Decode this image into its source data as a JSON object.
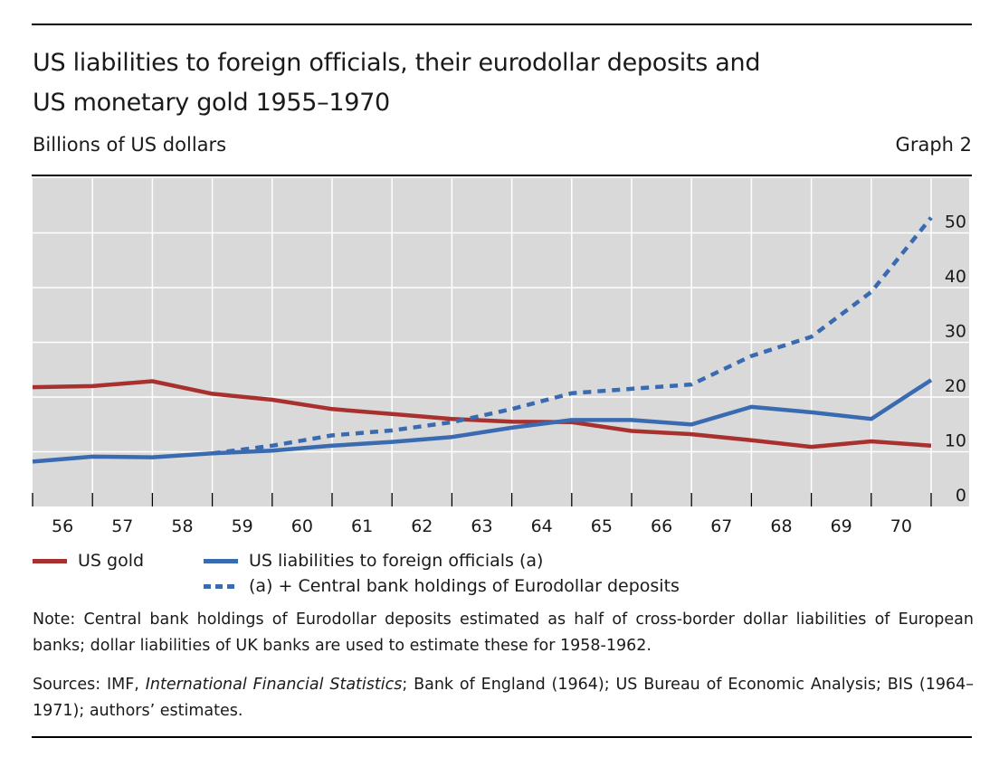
{
  "header": {
    "title_line1": "US liabilities to foreign officials, their eurodollar deposits and",
    "title_line2": "US monetary gold 1955–1970",
    "unit": "Billions of US dollars",
    "graph_number": "Graph 2"
  },
  "colors": {
    "gold": "#a8302f",
    "liabilities": "#3a6bb0",
    "plot_background": "#d9d9d9",
    "grid": "#ffffff"
  },
  "chart_data": {
    "type": "line",
    "title": "US liabilities to foreign officials, their eurodollar deposits and US monetary gold 1955–1970",
    "xlabel": "",
    "ylabel": "Billions of US dollars",
    "x": [
      1955,
      1956,
      1957,
      1958,
      1959,
      1960,
      1961,
      1962,
      1963,
      1964,
      1965,
      1966,
      1967,
      1968,
      1969,
      1970
    ],
    "x_tick_labels": [
      "56",
      "57",
      "58",
      "59",
      "60",
      "61",
      "62",
      "63",
      "64",
      "65",
      "66",
      "67",
      "68",
      "69",
      "70"
    ],
    "y_ticks": [
      0,
      10,
      20,
      30,
      40,
      50
    ],
    "ylim": [
      0,
      60
    ],
    "y_axis_side": "right",
    "grid": true,
    "legend_position": "bottom",
    "series": [
      {
        "name": "US gold",
        "style": "solid",
        "color": "#a8302f",
        "values": [
          21.8,
          22.0,
          22.9,
          20.6,
          19.5,
          17.8,
          16.9,
          16.0,
          15.5,
          15.4,
          13.8,
          13.2,
          12.1,
          10.9,
          11.9,
          11.1
        ]
      },
      {
        "name": "US liabilities to foreign officials (a)",
        "style": "solid",
        "color": "#3a6bb0",
        "values": [
          8.2,
          9.1,
          9.0,
          9.7,
          10.2,
          11.1,
          11.8,
          12.7,
          14.4,
          15.8,
          15.8,
          15.0,
          18.2,
          17.2,
          16.0,
          23.1
        ]
      },
      {
        "name": "(a) + Central bank holdings of Eurodollar deposits",
        "style": "dashed",
        "color": "#3a6bb0",
        "values": [
          null,
          null,
          null,
          9.7,
          11.1,
          13.0,
          13.9,
          15.4,
          17.8,
          20.7,
          21.5,
          22.3,
          27.5,
          31.0,
          39.2,
          52.8
        ]
      }
    ]
  },
  "legend": {
    "items": [
      {
        "label": "US gold"
      },
      {
        "label": "US liabilities to foreign officials (a)"
      },
      {
        "label": "(a) + Central bank holdings of Eurodollar deposits"
      }
    ]
  },
  "footer": {
    "note": "Note: Central bank holdings of Eurodollar deposits estimated as half of cross-border dollar liabilities of European banks; dollar liabilities of UK banks are used to estimate these for 1958-1962.",
    "sources_prefix": "Sources: IMF, ",
    "sources_italic": "International Financial Statistics",
    "sources_rest": "; Bank of England (1964); US Bureau of Economic Analysis; BIS (1964–1971); authors’ estimates."
  }
}
